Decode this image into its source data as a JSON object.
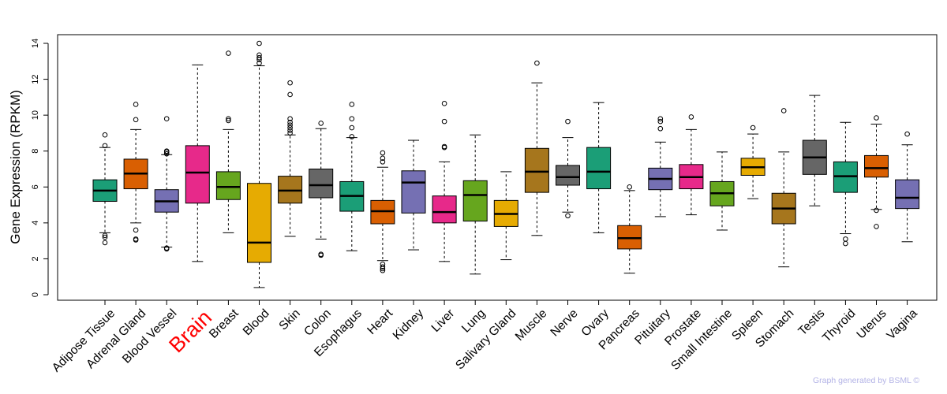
{
  "chart_data": {
    "type": "boxplot",
    "ylabel": "Gene Expression (RPKM)",
    "xlabel": "",
    "ylim": [
      0,
      14
    ],
    "yticks": [
      0,
      2,
      4,
      6,
      8,
      10,
      12,
      14
    ],
    "highlighted_category": "Brain",
    "highlight_color": "#ff0000",
    "categories": [
      {
        "name": "Adipose Tissue",
        "color": "#1b9e77",
        "whisker_low": 3.45,
        "q1": 5.2,
        "median": 5.8,
        "q3": 6.4,
        "whisker_high": 8.2,
        "outliers": [
          2.9,
          3.2,
          3.3,
          8.3,
          8.9
        ]
      },
      {
        "name": "Adrenal Gland",
        "color": "#d95f02",
        "whisker_low": 4.0,
        "q1": 5.9,
        "median": 6.75,
        "q3": 7.55,
        "whisker_high": 9.2,
        "outliers": [
          3.05,
          3.1,
          3.6,
          9.75,
          10.6
        ]
      },
      {
        "name": "Blood Vessel",
        "color": "#7570b3",
        "whisker_low": 2.65,
        "q1": 4.6,
        "median": 5.2,
        "q3": 5.85,
        "whisker_high": 7.8,
        "outliers": [
          2.55,
          2.6,
          7.85,
          7.95,
          8.0,
          9.8
        ]
      },
      {
        "name": "Brain",
        "color": "#e7298a",
        "whisker_low": 1.85,
        "q1": 5.1,
        "median": 6.8,
        "q3": 8.3,
        "whisker_high": 12.8,
        "outliers": []
      },
      {
        "name": "Breast",
        "color": "#66a61e",
        "whisker_low": 3.45,
        "q1": 5.3,
        "median": 6.0,
        "q3": 6.85,
        "whisker_high": 9.2,
        "outliers": [
          9.7,
          9.8,
          13.45
        ]
      },
      {
        "name": "Blood",
        "color": "#e6ab02",
        "whisker_low": 0.4,
        "q1": 1.8,
        "median": 2.9,
        "q3": 6.2,
        "whisker_high": 12.75,
        "outliers": [
          12.9,
          13.1,
          13.2,
          13.35,
          14.0
        ]
      },
      {
        "name": "Skin",
        "color": "#a6761d",
        "whisker_low": 3.25,
        "q1": 5.1,
        "median": 5.8,
        "q3": 6.6,
        "whisker_high": 8.9,
        "outliers": [
          9.0,
          9.15,
          9.3,
          9.45,
          9.6,
          9.8,
          11.15,
          11.8
        ]
      },
      {
        "name": "Colon",
        "color": "#666666",
        "whisker_low": 3.1,
        "q1": 5.4,
        "median": 6.1,
        "q3": 7.0,
        "whisker_high": 9.25,
        "outliers": [
          2.2,
          2.25,
          9.55
        ]
      },
      {
        "name": "Esophagus",
        "color": "#1b9e77",
        "whisker_low": 2.45,
        "q1": 4.65,
        "median": 5.5,
        "q3": 6.3,
        "whisker_high": 8.75,
        "outliers": [
          8.8,
          9.3,
          9.8,
          10.6
        ]
      },
      {
        "name": "Heart",
        "color": "#d95f02",
        "whisker_low": 1.9,
        "q1": 3.95,
        "median": 4.65,
        "q3": 5.25,
        "whisker_high": 7.1,
        "outliers": [
          1.35,
          1.45,
          1.55,
          1.7,
          7.4,
          7.6,
          7.9
        ]
      },
      {
        "name": "Kidney",
        "color": "#7570b3",
        "whisker_low": 2.5,
        "q1": 4.55,
        "median": 6.25,
        "q3": 6.9,
        "whisker_high": 8.6,
        "outliers": []
      },
      {
        "name": "Liver",
        "color": "#e7298a",
        "whisker_low": 1.85,
        "q1": 4.0,
        "median": 4.6,
        "q3": 5.5,
        "whisker_high": 7.4,
        "outliers": [
          8.2,
          8.25,
          9.65,
          10.65
        ]
      },
      {
        "name": "Lung",
        "color": "#66a61e",
        "whisker_low": 1.15,
        "q1": 4.1,
        "median": 5.55,
        "q3": 6.35,
        "whisker_high": 8.9,
        "outliers": []
      },
      {
        "name": "Salivary Gland",
        "color": "#e6ab02",
        "whisker_low": 1.95,
        "q1": 3.8,
        "median": 4.5,
        "q3": 5.25,
        "whisker_high": 6.85,
        "outliers": []
      },
      {
        "name": "Muscle",
        "color": "#a6761d",
        "whisker_low": 3.3,
        "q1": 5.7,
        "median": 6.85,
        "q3": 8.15,
        "whisker_high": 11.8,
        "outliers": [
          12.9
        ]
      },
      {
        "name": "Nerve",
        "color": "#666666",
        "whisker_low": 4.6,
        "q1": 6.1,
        "median": 6.55,
        "q3": 7.2,
        "whisker_high": 8.75,
        "outliers": [
          4.4,
          9.65
        ]
      },
      {
        "name": "Ovary",
        "color": "#1b9e77",
        "whisker_low": 3.45,
        "q1": 5.9,
        "median": 6.85,
        "q3": 8.2,
        "whisker_high": 10.7,
        "outliers": []
      },
      {
        "name": "Pancreas",
        "color": "#d95f02",
        "whisker_low": 1.2,
        "q1": 2.55,
        "median": 3.15,
        "q3": 3.85,
        "whisker_high": 5.8,
        "outliers": [
          6.0
        ]
      },
      {
        "name": "Pituitary",
        "color": "#7570b3",
        "whisker_low": 4.35,
        "q1": 5.85,
        "median": 6.45,
        "q3": 7.05,
        "whisker_high": 8.5,
        "outliers": [
          9.25,
          9.65,
          9.8
        ]
      },
      {
        "name": "Prostate",
        "color": "#e7298a",
        "whisker_low": 4.45,
        "q1": 5.9,
        "median": 6.55,
        "q3": 7.25,
        "whisker_high": 9.2,
        "outliers": [
          9.9
        ]
      },
      {
        "name": "Small Intestine",
        "color": "#66a61e",
        "whisker_low": 3.6,
        "q1": 4.95,
        "median": 5.65,
        "q3": 6.3,
        "whisker_high": 7.95,
        "outliers": []
      },
      {
        "name": "Spleen",
        "color": "#e6ab02",
        "whisker_low": 5.35,
        "q1": 6.65,
        "median": 7.1,
        "q3": 7.6,
        "whisker_high": 8.95,
        "outliers": [
          9.3
        ]
      },
      {
        "name": "Stomach",
        "color": "#a6761d",
        "whisker_low": 1.55,
        "q1": 3.95,
        "median": 4.8,
        "q3": 5.65,
        "whisker_high": 7.95,
        "outliers": [
          10.25
        ]
      },
      {
        "name": "Testis",
        "color": "#666666",
        "whisker_low": 4.95,
        "q1": 6.7,
        "median": 7.65,
        "q3": 8.6,
        "whisker_high": 11.1,
        "outliers": []
      },
      {
        "name": "Thyroid",
        "color": "#1b9e77",
        "whisker_low": 3.4,
        "q1": 5.7,
        "median": 6.6,
        "q3": 7.4,
        "whisker_high": 9.6,
        "outliers": [
          2.85,
          3.1
        ]
      },
      {
        "name": "Uterus",
        "color": "#d95f02",
        "whisker_low": 4.75,
        "q1": 6.55,
        "median": 7.05,
        "q3": 7.75,
        "whisker_high": 9.5,
        "outliers": [
          3.8,
          4.7,
          9.85
        ]
      },
      {
        "name": "Vagina",
        "color": "#7570b3",
        "whisker_low": 2.95,
        "q1": 4.8,
        "median": 5.4,
        "q3": 6.4,
        "whisker_high": 8.35,
        "outliers": [
          8.95
        ]
      }
    ]
  },
  "footer": {
    "credit": "Graph generated by BSML ©"
  }
}
